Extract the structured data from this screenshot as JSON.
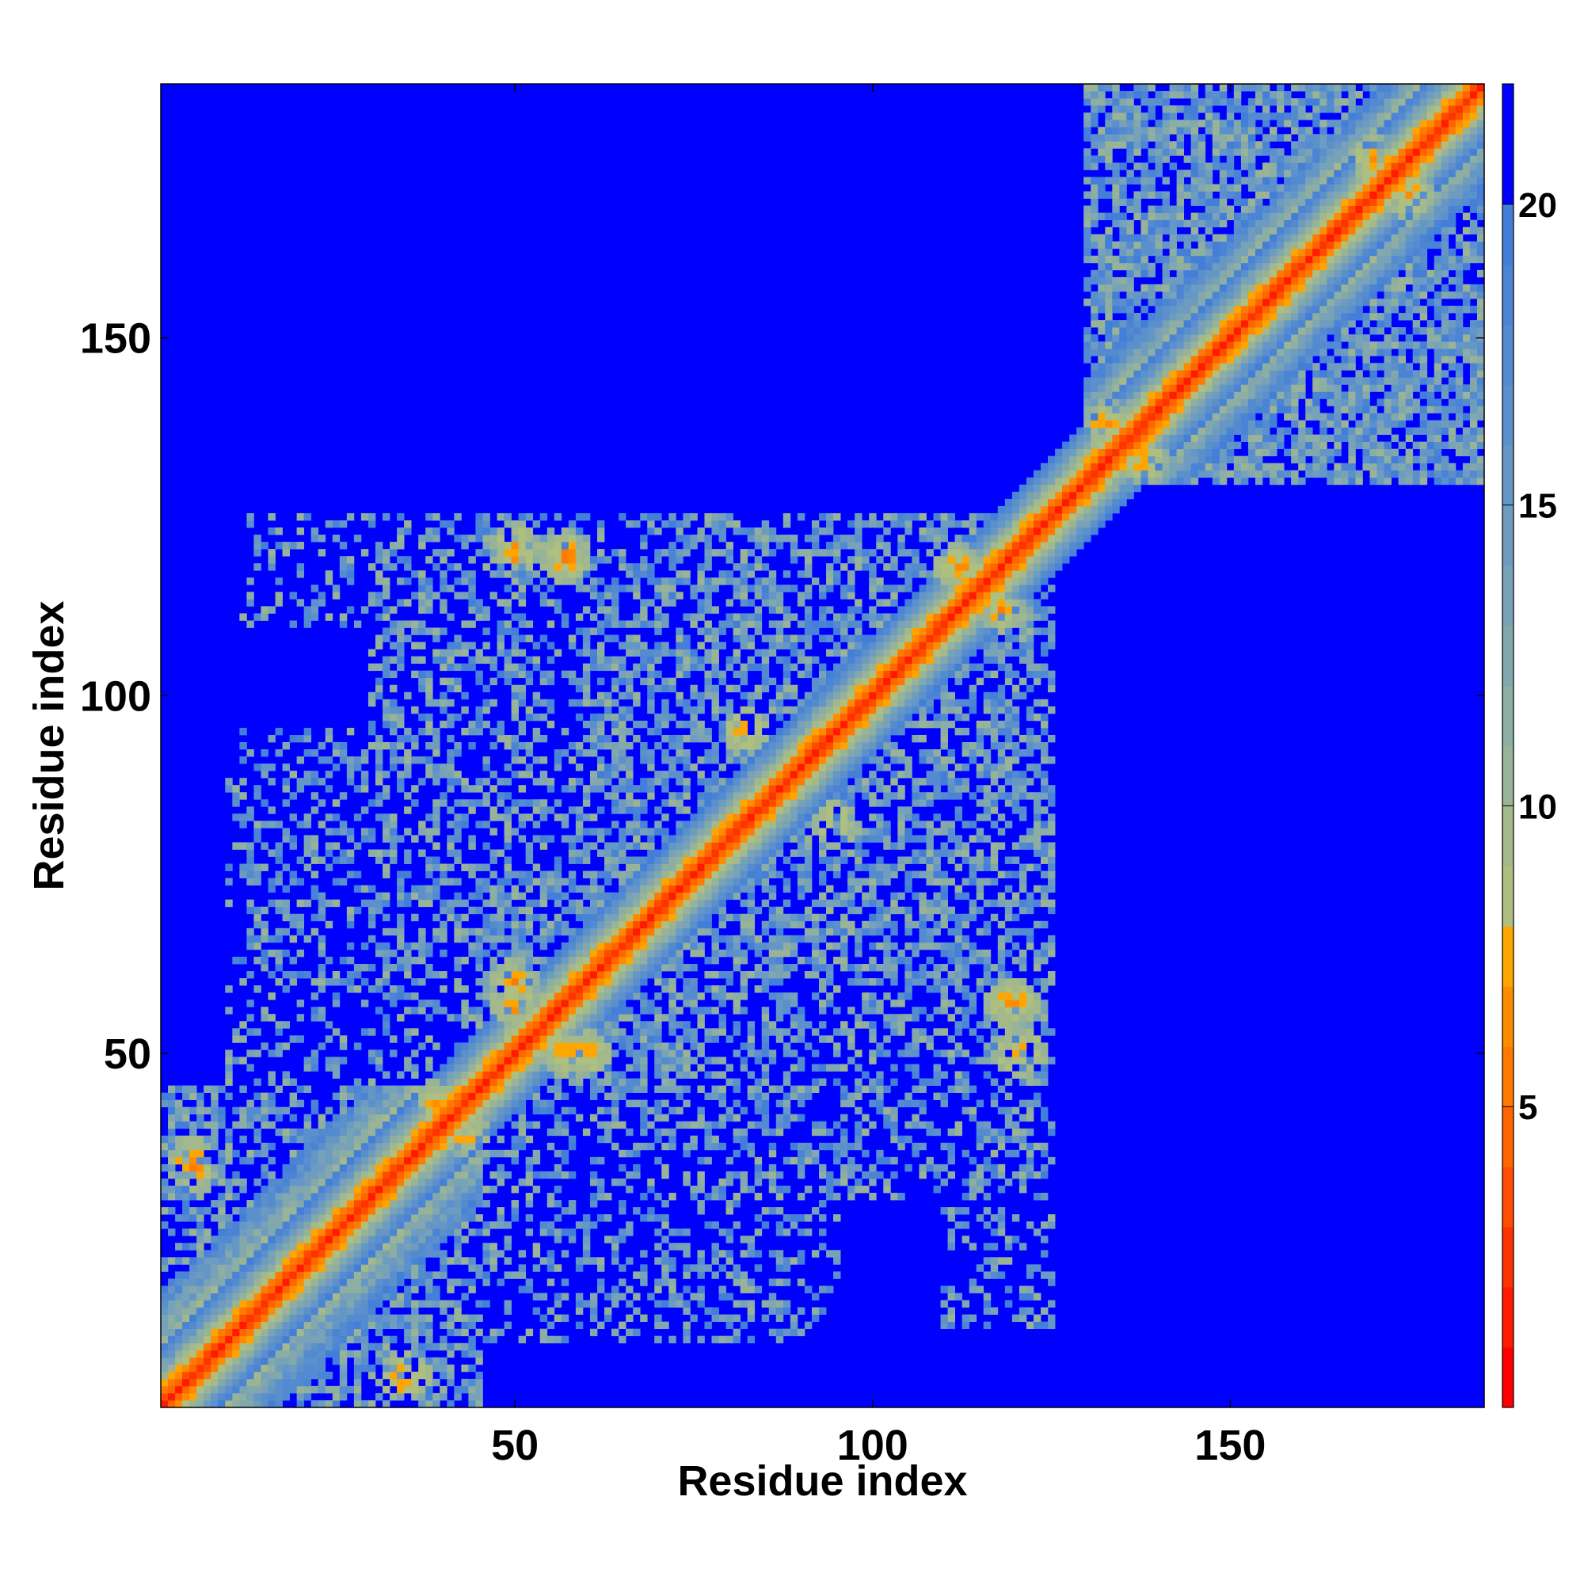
{
  "chart_data": {
    "type": "heatmap",
    "xlabel": "Residue index",
    "ylabel": "Residue index",
    "xlim": [
      1,
      185
    ],
    "ylim": [
      1,
      185
    ],
    "x_ticks": [
      50,
      100,
      150
    ],
    "y_ticks": [
      50,
      100,
      150
    ],
    "colorbar": {
      "range": [
        0,
        22
      ],
      "ticks": [
        5,
        10,
        15,
        20
      ],
      "levels": [
        {
          "from": 0,
          "to": 1,
          "color": "#ff0000"
        },
        {
          "from": 1,
          "to": 2,
          "color": "#ff1a00"
        },
        {
          "from": 2,
          "to": 3,
          "color": "#ff3300"
        },
        {
          "from": 3,
          "to": 4,
          "color": "#ff4d00"
        },
        {
          "from": 4,
          "to": 5,
          "color": "#ff6600"
        },
        {
          "from": 5,
          "to": 6,
          "color": "#ff7a00"
        },
        {
          "from": 6,
          "to": 7,
          "color": "#ff8c00"
        },
        {
          "from": 7,
          "to": 8,
          "color": "#ffa500"
        },
        {
          "from": 8,
          "to": 9,
          "color": "#aebf7f"
        },
        {
          "from": 9,
          "to": 10,
          "color": "#a3b98c"
        },
        {
          "from": 10,
          "to": 11,
          "color": "#98b397"
        },
        {
          "from": 11,
          "to": 12,
          "color": "#8daea2"
        },
        {
          "from": 12,
          "to": 13,
          "color": "#82a8ad"
        },
        {
          "from": 13,
          "to": 14,
          "color": "#77a2b8"
        },
        {
          "from": 14,
          "to": 15,
          "color": "#6d9cc0"
        },
        {
          "from": 15,
          "to": 16,
          "color": "#6496c6"
        },
        {
          "from": 16,
          "to": 17,
          "color": "#5b90cc"
        },
        {
          "from": 17,
          "to": 18,
          "color": "#538ad0"
        },
        {
          "from": 18,
          "to": 19,
          "color": "#4b84d4"
        },
        {
          "from": 19,
          "to": 20,
          "color": "#437ed8"
        },
        {
          "from": 20,
          "to": 22,
          "color": "#0000ff"
        }
      ]
    },
    "cutoff": 20,
    "background_color": "#0000ff",
    "diagonal": {
      "from": 1,
      "to": 185,
      "band_width": 8
    },
    "contact_regions": [
      {
        "x": [
          1,
          45
        ],
        "y": [
          1,
          45
        ],
        "density": 0.6
      },
      {
        "x": [
          12,
          45
        ],
        "y": [
          45,
          95
        ],
        "density": 0.35
      },
      {
        "x": [
          30,
          75
        ],
        "y": [
          60,
          125
        ],
        "density": 0.45
      },
      {
        "x": [
          45,
          75
        ],
        "y": [
          45,
          75
        ],
        "density": 0.7
      },
      {
        "x": [
          60,
          125
        ],
        "y": [
          70,
          120
        ],
        "density": 0.6
      },
      {
        "x": [
          80,
          125
        ],
        "y": [
          45,
          75
        ],
        "density": 0.45
      },
      {
        "x": [
          110,
          125
        ],
        "y": [
          12,
          50
        ],
        "density": 0.3
      },
      {
        "x": [
          40,
          90
        ],
        "y": [
          10,
          45
        ],
        "density": 0.3
      },
      {
        "x": [
          130,
          185
        ],
        "y": [
          130,
          185
        ],
        "density": 0.8
      }
    ],
    "hotspots": [
      {
        "x": 50,
        "y": 60,
        "strength": 0.9
      },
      {
        "x": 57,
        "y": 50,
        "strength": 0.9
      },
      {
        "x": 57,
        "y": 120,
        "strength": 0.9
      },
      {
        "x": 50,
        "y": 120,
        "strength": 0.7
      },
      {
        "x": 119,
        "y": 57,
        "strength": 0.9
      },
      {
        "x": 121,
        "y": 50,
        "strength": 0.8
      },
      {
        "x": 5,
        "y": 35,
        "strength": 0.7
      },
      {
        "x": 34,
        "y": 5,
        "strength": 0.7
      },
      {
        "x": 39,
        "y": 43,
        "strength": 0.7
      },
      {
        "x": 112,
        "y": 118,
        "strength": 0.8
      },
      {
        "x": 82,
        "y": 95,
        "strength": 0.7
      },
      {
        "x": 95,
        "y": 82,
        "strength": 0.7
      },
      {
        "x": 170,
        "y": 175,
        "strength": 0.7
      },
      {
        "x": 138,
        "y": 133,
        "strength": 0.6
      }
    ]
  }
}
